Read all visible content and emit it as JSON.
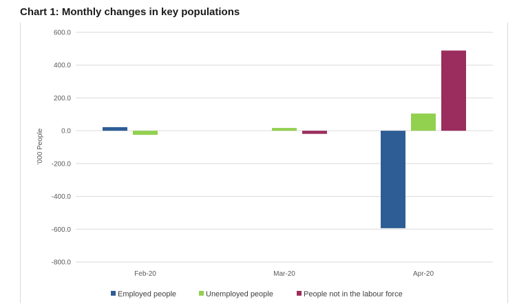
{
  "page": {
    "title": "Chart 1: Monthly changes in key populations"
  },
  "chart_data": {
    "type": "bar",
    "title": "Chart 1: Monthly changes in key populations",
    "xlabel": "",
    "ylabel": "'000 People",
    "categories": [
      "Feb-20",
      "Mar-20",
      "Apr-20"
    ],
    "ylim": [
      -800,
      600
    ],
    "yticks": [
      600,
      400,
      200,
      0,
      -200,
      -400,
      -600,
      -800
    ],
    "ytick_labels": [
      "600.0",
      "400.0",
      "200.0",
      "0.0",
      "-200.0",
      "-400.0",
      "-600.0",
      "-800.0"
    ],
    "grid": true,
    "legend_position": "bottom",
    "series": [
      {
        "name": "Employed people",
        "color": "#2e5d95",
        "values": [
          22,
          0,
          -594
        ]
      },
      {
        "name": "Unemployed people",
        "color": "#92d050",
        "values": [
          -25,
          17,
          105
        ]
      },
      {
        "name": "People not in the labour force",
        "color": "#9b2d5e",
        "values": [
          0,
          -19,
          489
        ]
      }
    ]
  }
}
